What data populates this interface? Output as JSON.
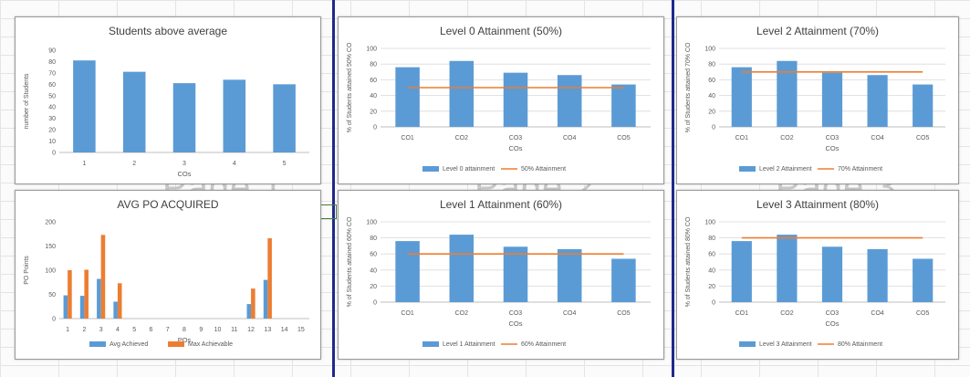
{
  "colors": {
    "bar": "#5b9bd5",
    "line": "#ed7d31",
    "bar_alt": "#ed7d31",
    "axis_text": "#595959",
    "grid": "#d9d9d9",
    "page_break": "#1f2a8c"
  },
  "watermarks": [
    "Page 1",
    "Page 2",
    "Page 3"
  ],
  "chart_data": [
    {
      "id": "students",
      "type": "bar",
      "title": "Students above average",
      "xlabel": "COs",
      "ylabel": "number of Students",
      "categories": [
        "1",
        "2",
        "3",
        "4",
        "5"
      ],
      "values": [
        81,
        71,
        61,
        64,
        60
      ],
      "ylim": [
        0,
        90
      ],
      "yticks": [
        0,
        10,
        20,
        30,
        40,
        50,
        60,
        70,
        80,
        90
      ],
      "grid": false
    },
    {
      "id": "po",
      "type": "bar",
      "title": "AVG PO ACQUIRED",
      "xlabel": "POs",
      "ylabel": "PO Points",
      "categories": [
        "1",
        "2",
        "3",
        "4",
        "5",
        "6",
        "7",
        "8",
        "9",
        "10",
        "11",
        "12",
        "13",
        "14",
        "15"
      ],
      "ylim": [
        0,
        200
      ],
      "yticks": [
        0,
        50,
        100,
        150,
        200
      ],
      "grid": false,
      "series": [
        {
          "name": "Avg Achieved",
          "values": [
            48,
            47,
            82,
            35,
            0,
            0,
            0,
            0,
            0,
            0,
            0,
            30,
            80,
            0,
            0
          ]
        },
        {
          "name": "Max Achievable",
          "values": [
            100,
            101,
            173,
            73,
            0,
            0,
            0,
            0,
            0,
            0,
            0,
            62,
            166,
            0,
            0
          ]
        }
      ],
      "legend": "bottom"
    },
    {
      "id": "lvl0",
      "type": "bar",
      "title": "Level 0 Attainment (50%)",
      "xlabel": "COs",
      "ylabel": "% of Students attained 50% CO",
      "categories": [
        "CO1",
        "CO2",
        "CO3",
        "CO4",
        "CO5"
      ],
      "ylim": [
        0,
        100
      ],
      "yticks": [
        0,
        20,
        40,
        60,
        80,
        100
      ],
      "grid": true,
      "series": [
        {
          "name": "Level 0 attainment",
          "values": [
            76,
            84,
            69,
            66,
            54
          ]
        },
        {
          "name": "50% Attainment",
          "type": "line",
          "values": [
            50,
            50,
            50,
            50,
            50
          ]
        }
      ],
      "legend": "bottom"
    },
    {
      "id": "lvl1",
      "type": "bar",
      "title": "Level 1 Attainment (60%)",
      "xlabel": "COs",
      "ylabel": "% of Students attained 60% CO",
      "categories": [
        "CO1",
        "CO2",
        "CO3",
        "CO4",
        "CO5"
      ],
      "ylim": [
        0,
        100
      ],
      "yticks": [
        0,
        20,
        40,
        60,
        80,
        100
      ],
      "grid": true,
      "series": [
        {
          "name": "Level 1 Attainment",
          "values": [
            76,
            84,
            69,
            66,
            54
          ]
        },
        {
          "name": "60% Attainment",
          "type": "line",
          "values": [
            60,
            60,
            60,
            60,
            60
          ]
        }
      ],
      "legend": "bottom"
    },
    {
      "id": "lvl2",
      "type": "bar",
      "title": "Level 2 Attainment (70%)",
      "xlabel": "COs",
      "ylabel": "% of Students attained 70% CO",
      "categories": [
        "CO1",
        "CO2",
        "CO3",
        "CO4",
        "CO5"
      ],
      "ylim": [
        0,
        100
      ],
      "yticks": [
        0,
        20,
        40,
        60,
        80,
        100
      ],
      "grid": true,
      "series": [
        {
          "name": "Level 2 Attainment",
          "values": [
            76,
            84,
            69,
            66,
            54
          ]
        },
        {
          "name": "70% Attainment",
          "type": "line",
          "values": [
            70,
            70,
            70,
            70,
            70
          ]
        }
      ],
      "legend": "bottom"
    },
    {
      "id": "lvl3",
      "type": "bar",
      "title": "Level 3 Attainment (80%)",
      "xlabel": "COs",
      "ylabel": "% of Students attained 80% CO",
      "categories": [
        "CO1",
        "CO2",
        "CO3",
        "CO4",
        "CO5"
      ],
      "ylim": [
        0,
        100
      ],
      "yticks": [
        0,
        20,
        40,
        60,
        80,
        100
      ],
      "grid": true,
      "series": [
        {
          "name": "Level 3 Attainment",
          "values": [
            76,
            84,
            69,
            66,
            54
          ]
        },
        {
          "name": "80% Attainment",
          "type": "line",
          "values": [
            80,
            80,
            80,
            80,
            80
          ]
        }
      ],
      "legend": "bottom"
    }
  ]
}
